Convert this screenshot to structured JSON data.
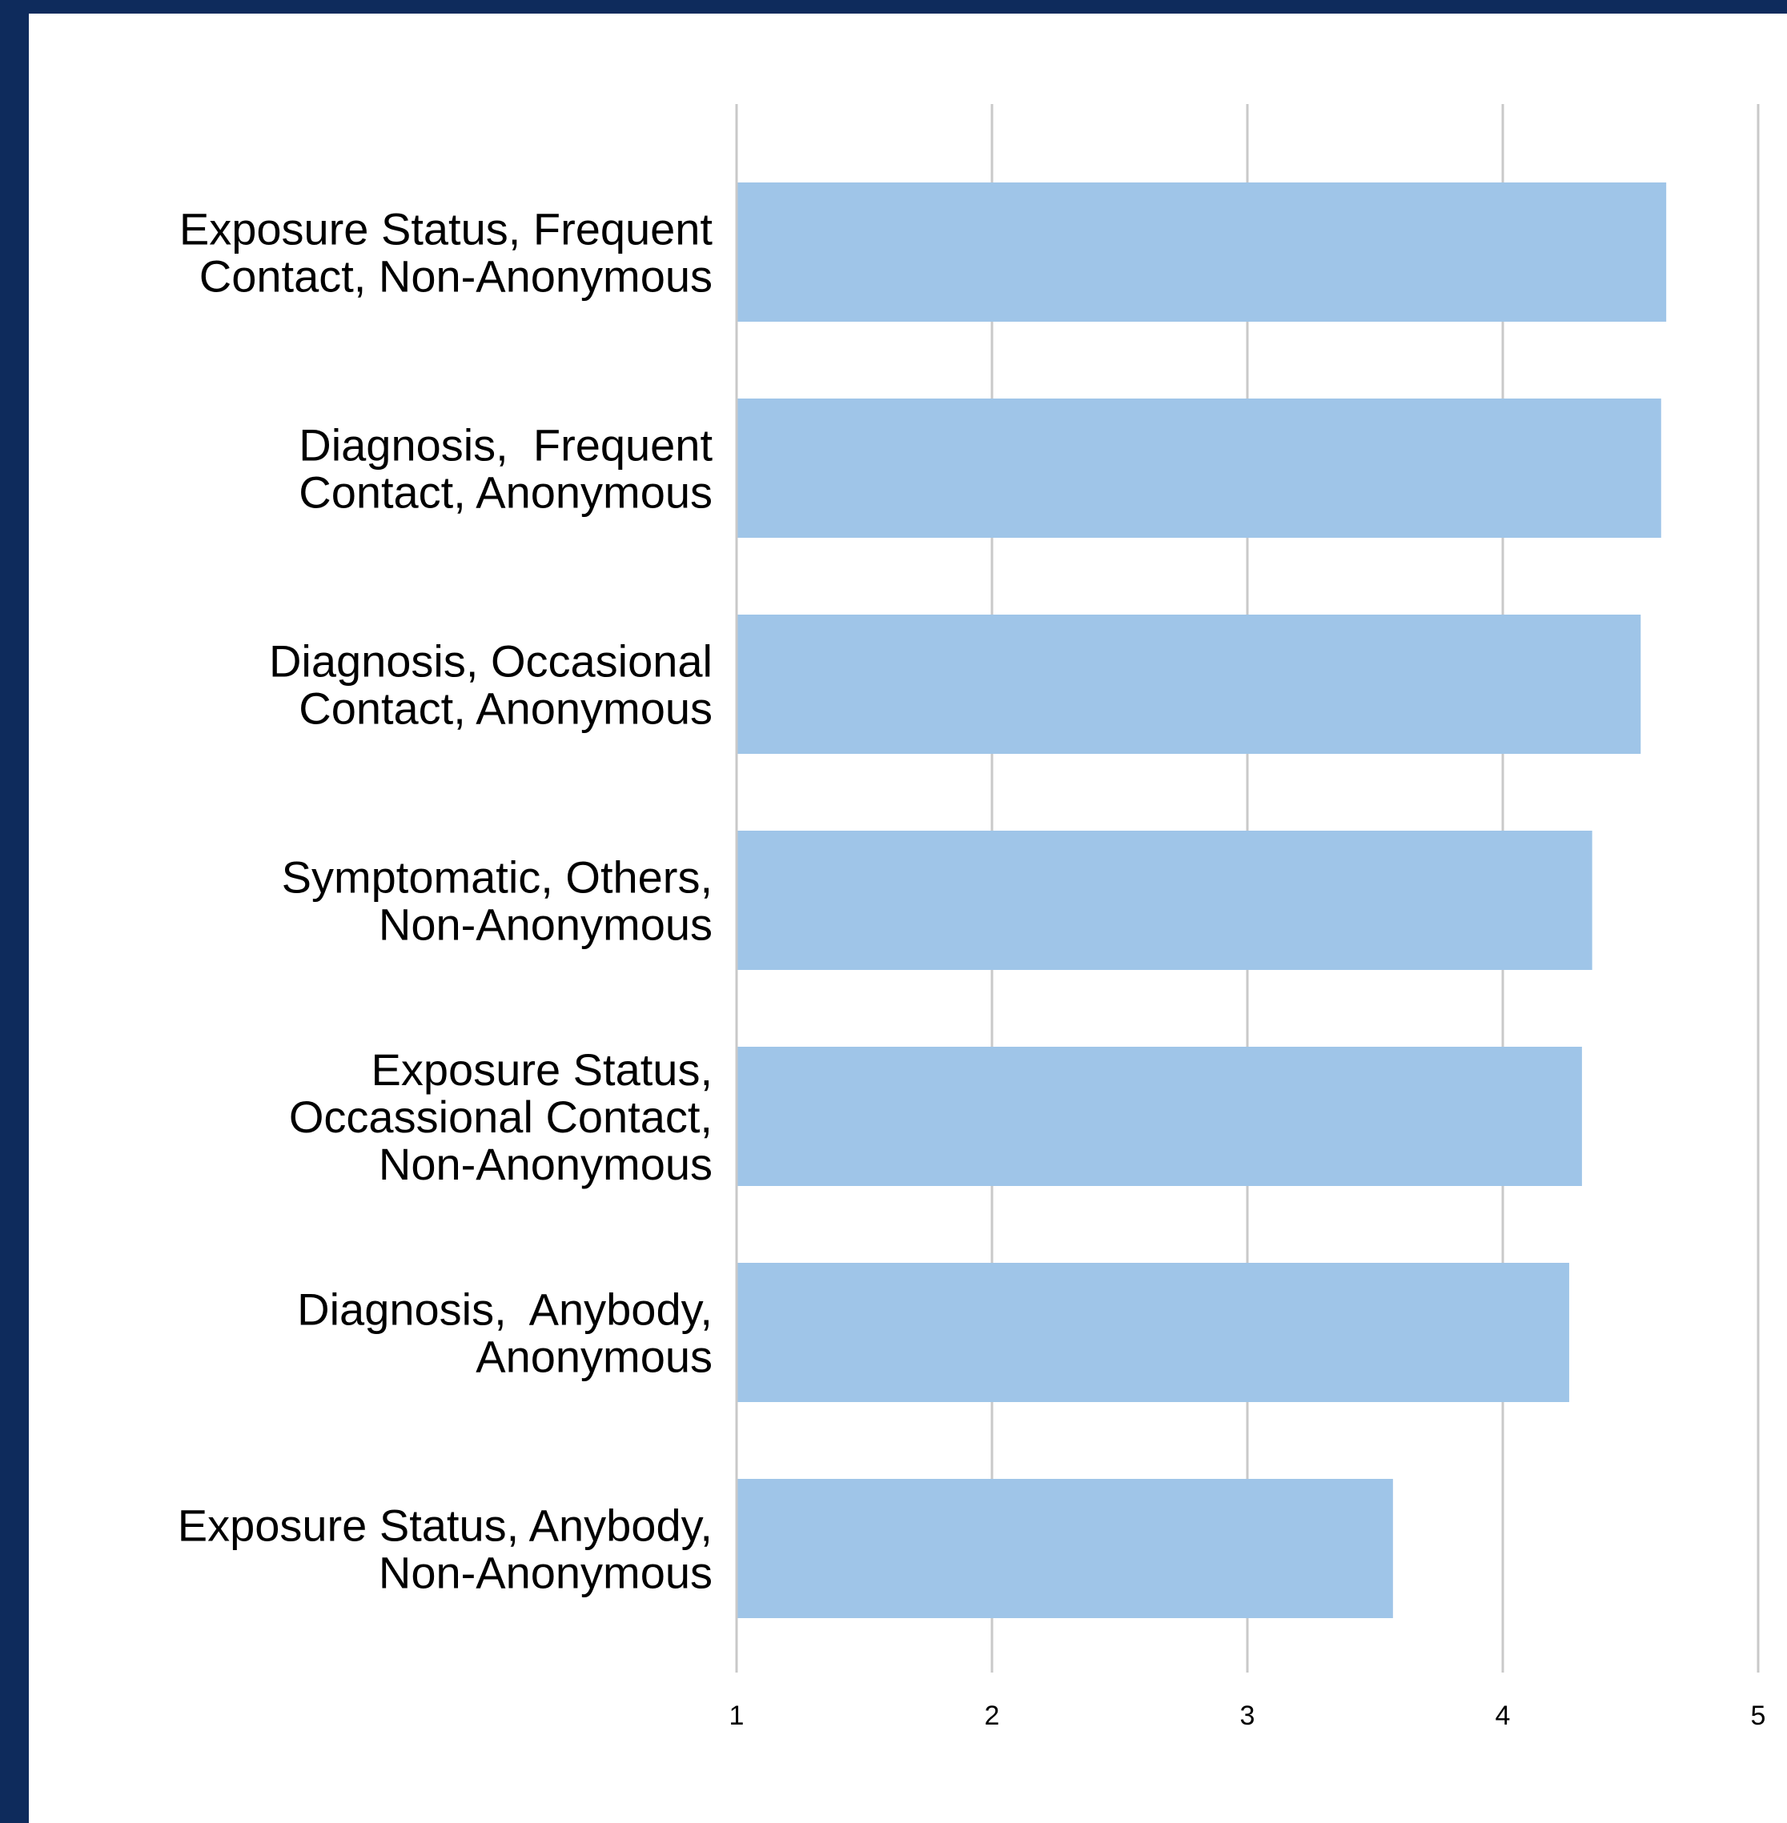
{
  "colors": {
    "frame": "#0e2b5c",
    "panel": "#ffffff",
    "bar": "#9fc5e8",
    "grid": "#c9c9c9",
    "text": "#000000"
  },
  "chart_data": {
    "type": "bar",
    "orientation": "horizontal",
    "title": "",
    "xlabel": "",
    "ylabel": "",
    "grid": true,
    "legend": "none",
    "xlim": [
      1,
      5
    ],
    "xticks": [
      "1",
      "2",
      "3",
      "4",
      "5"
    ],
    "categories": [
      [
        "Exposure Status, Frequent",
        "Contact, Non-Anonymous"
      ],
      [
        "Diagnosis,  Frequent",
        "Contact, Anonymous"
      ],
      [
        "Diagnosis, Occasional",
        "Contact, Anonymous"
      ],
      [
        "Symptomatic, Others,",
        "Non-Anonymous"
      ],
      [
        "Exposure Status,",
        "Occassional Contact,",
        "Non-Anonymous"
      ],
      [
        "Diagnosis,  Anybody,",
        "Anonymous"
      ],
      [
        "Exposure Status, Anybody,",
        "Non-Anonymous"
      ]
    ],
    "values": [
      4.64,
      4.62,
      4.54,
      4.35,
      4.31,
      4.26,
      3.57
    ]
  }
}
